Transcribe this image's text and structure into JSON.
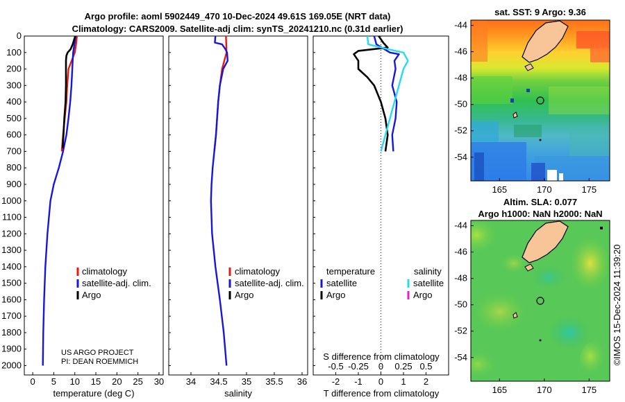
{
  "title_line1": "Argo profile: aoml 5902449_470 10-Dec-2024 49.61S 169.05E (NRT data)",
  "title_line2": "Climatology: CARS2009. Satellite-adj clim: synTS_20241210.nc (0.31d earlier)",
  "credit_line1": "US ARGO PROJECT",
  "credit_line2": "PI: DEAN ROEMMICH",
  "copyright": "©IMOS 15-Dec-2024 11:39:20",
  "colors": {
    "climatology": "#e8190f",
    "satellite": "#1515e0",
    "argo": "#000000",
    "sat_salinity": "#22ddee",
    "argo_salinity": "#e020d0"
  },
  "depth_ticks": [
    "0",
    "100",
    "200",
    "300",
    "400",
    "500",
    "600",
    "700",
    "800",
    "900",
    "1000",
    "1100",
    "1200",
    "1300",
    "1400",
    "1500",
    "1600",
    "1700",
    "1800",
    "1900",
    "2000"
  ],
  "legend1": {
    "climatology": "climatology",
    "satellite": "satellite-adj. clim.",
    "argo": "Argo"
  },
  "legend3": {
    "temp_header": "temperature",
    "sal_header": "salinity",
    "temp_satellite": "satellite",
    "temp_argo": "Argo",
    "sal_satellite": "satellite",
    "sal_argo": "Argo"
  },
  "map1": {
    "title": "sat. SST: 9 Argo: 9.36",
    "lat_ticks": [
      "-44",
      "-46",
      "-48",
      "-50",
      "-52",
      "-54"
    ],
    "lon_ticks": [
      "165",
      "170",
      "175"
    ]
  },
  "map2": {
    "title_line1": "Altim. SLA: 0.077",
    "title_line2": "Argo h1000: NaN h2000: NaN",
    "lat_ticks": [
      "-44",
      "-46",
      "-48",
      "-50",
      "-52",
      "-54"
    ],
    "lon_ticks": [
      "165",
      "170",
      "175"
    ]
  },
  "chart_data": [
    {
      "type": "line",
      "title": "",
      "xlabel": "temperature (deg C)",
      "ylabel": "",
      "xlim": [
        -2,
        31
      ],
      "ylim": [
        2050,
        0
      ],
      "x_ticks": [
        "0",
        "5",
        "10",
        "15",
        "20",
        "25",
        "30"
      ],
      "series": [
        {
          "name": "climatology",
          "depth": [
            0,
            50,
            100,
            200,
            300,
            400,
            500,
            600,
            700
          ],
          "values": [
            10.5,
            10.3,
            10.0,
            8.5,
            8.2,
            8.0,
            7.6,
            7.2,
            6.9
          ]
        },
        {
          "name": "satellite-adj. clim.",
          "depth": [
            0,
            50,
            100,
            200,
            300,
            400,
            500,
            600,
            700,
            800,
            900,
            1000,
            1200,
            1400,
            1600,
            1800,
            2000
          ],
          "values": [
            10.2,
            9.9,
            9.6,
            9.4,
            9.2,
            8.9,
            8.5,
            8.0,
            7.2,
            6.2,
            5.0,
            4.2,
            3.5,
            3.0,
            2.7,
            2.5,
            2.4
          ]
        },
        {
          "name": "Argo",
          "depth": [
            0,
            50,
            80,
            100,
            120,
            150,
            200,
            300,
            400,
            500,
            600,
            680
          ],
          "values": [
            10.1,
            9.5,
            9.0,
            8.3,
            8.0,
            7.9,
            7.9,
            7.9,
            7.8,
            7.5,
            7.3,
            7.1
          ]
        }
      ]
    },
    {
      "type": "line",
      "title": "",
      "xlabel": "salinity",
      "ylabel": "",
      "xlim": [
        33.6,
        36.1
      ],
      "ylim": [
        2050,
        0
      ],
      "x_ticks": [
        "34",
        "34.5",
        "35",
        "35.5",
        "36"
      ],
      "series": [
        {
          "name": "climatology",
          "depth": [
            0,
            100,
            150,
            200,
            300,
            400,
            500,
            600,
            700
          ],
          "values": [
            34.63,
            34.64,
            34.6,
            34.56,
            34.52,
            34.49,
            34.47,
            34.45,
            34.42
          ]
        },
        {
          "name": "satellite-adj. clim.",
          "depth": [
            0,
            40,
            50,
            80,
            100,
            150,
            200,
            300,
            400,
            500,
            600,
            700,
            800,
            900,
            1000,
            1200,
            1400,
            1600,
            1800,
            2000
          ],
          "values": [
            34.44,
            34.43,
            34.56,
            34.62,
            34.65,
            34.66,
            34.58,
            34.52,
            34.49,
            34.47,
            34.45,
            34.42,
            34.39,
            34.37,
            34.36,
            34.38,
            34.44,
            34.52,
            34.59,
            34.64
          ]
        },
        {
          "name": "Argo",
          "depth": [],
          "values": []
        }
      ]
    },
    {
      "type": "line",
      "title": "",
      "xlabel": "T difference from climatology",
      "ylabel": "",
      "secondary_xlabel": "S difference from climatology",
      "xlim": [
        -3,
        3
      ],
      "ylim": [
        2050,
        0
      ],
      "x_ticks": [
        "-2",
        "-1",
        "0",
        "1",
        "2"
      ],
      "secondary_x_ticks": [
        "-0.5",
        "-0.25",
        "0",
        "0.25",
        "0.5"
      ],
      "series": [
        {
          "name": "temperature satellite",
          "depth": [
            0,
            50,
            100,
            110,
            150,
            200,
            300,
            400,
            500,
            600,
            700
          ],
          "values": [
            -0.3,
            -0.2,
            0.4,
            0.8,
            0.6,
            0.65,
            0.5,
            0.7,
            0.65,
            0.5,
            0.55
          ]
        },
        {
          "name": "temperature Argo",
          "depth": [
            0,
            40,
            70,
            90,
            110,
            150,
            200,
            250,
            300,
            400,
            500,
            600,
            700
          ],
          "values": [
            -0.1,
            0.1,
            0.3,
            -1.0,
            -1.2,
            -1.0,
            -1.0,
            -0.6,
            -0.3,
            0,
            0.2,
            0.3,
            0.2
          ]
        },
        {
          "name": "salinity satellite",
          "depth": [
            0,
            50,
            80,
            100,
            150,
            200,
            300,
            400,
            500,
            600,
            700
          ],
          "values": [
            -0.15,
            -0.14,
            0.08,
            0.25,
            0.3,
            0.25,
            0.2,
            0.15,
            0.1,
            0.05,
            0.0
          ]
        },
        {
          "name": "salinity Argo",
          "depth": [],
          "values": []
        }
      ]
    }
  ]
}
